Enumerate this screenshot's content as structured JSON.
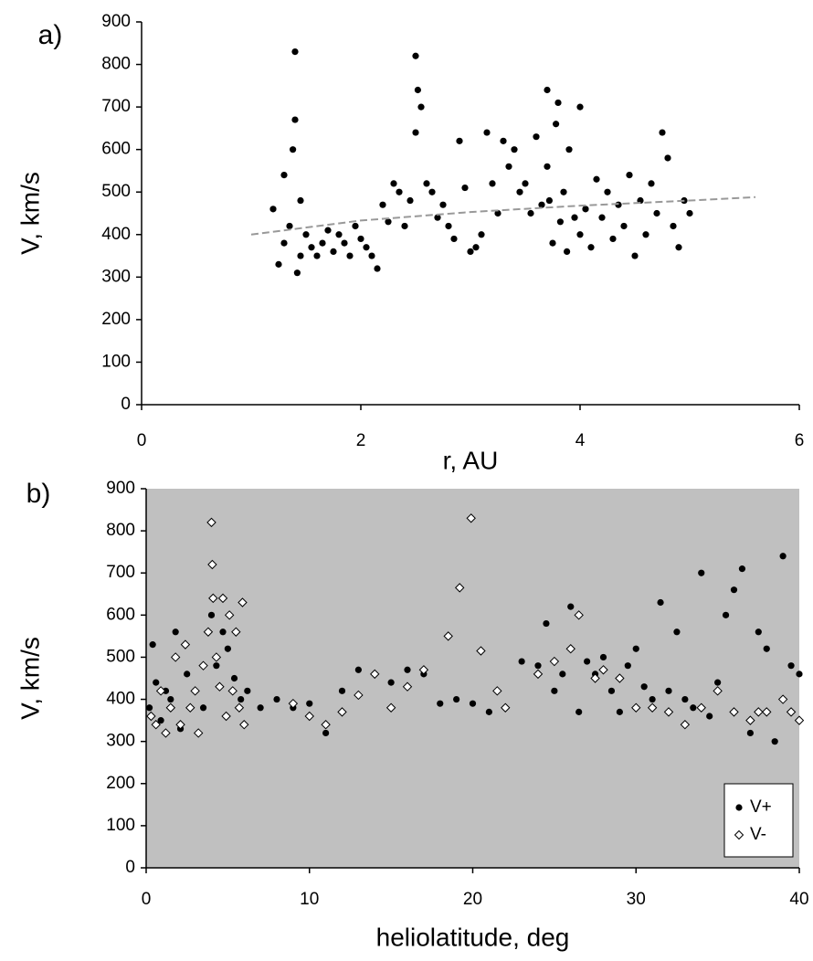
{
  "chart_data": [
    {
      "type": "scatter",
      "panel_label": "a)",
      "x_label": "r,  AU",
      "y_label": "V, km/s",
      "xlim": [
        0,
        6
      ],
      "xticks": [
        0,
        2,
        4,
        6
      ],
      "ylim": [
        0,
        900
      ],
      "yticks": [
        0,
        100,
        200,
        300,
        400,
        500,
        600,
        700,
        800,
        900
      ],
      "background": "#ffffff",
      "series": [
        {
          "color": "#000000",
          "marker": "circle",
          "x": [
            1.2,
            1.25,
            1.3,
            1.3,
            1.35,
            1.38,
            1.4,
            1.4,
            1.42,
            1.45,
            1.45,
            1.5,
            1.55,
            1.6,
            1.65,
            1.7,
            1.75,
            1.8,
            1.85,
            1.9,
            1.95,
            2.0,
            2.05,
            2.1,
            2.15,
            2.2,
            2.25,
            2.3,
            2.35,
            2.4,
            2.45,
            2.5,
            2.5,
            2.52,
            2.55,
            2.6,
            2.65,
            2.7,
            2.75,
            2.8,
            2.85,
            2.9,
            2.95,
            3.0,
            3.05,
            3.1,
            3.15,
            3.2,
            3.25,
            3.3,
            3.35,
            3.4,
            3.45,
            3.5,
            3.55,
            3.6,
            3.65,
            3.7,
            3.7,
            3.72,
            3.75,
            3.78,
            3.8,
            3.82,
            3.85,
            3.88,
            3.9,
            3.95,
            4.0,
            4.0,
            4.05,
            4.1,
            4.15,
            4.2,
            4.25,
            4.3,
            4.35,
            4.4,
            4.45,
            4.5,
            4.55,
            4.6,
            4.65,
            4.7,
            4.75,
            4.8,
            4.85,
            4.9,
            4.95,
            5.0
          ],
          "values": [
            460,
            330,
            540,
            380,
            420,
            600,
            830,
            670,
            310,
            480,
            350,
            400,
            370,
            350,
            380,
            410,
            360,
            400,
            380,
            350,
            420,
            390,
            370,
            350,
            320,
            470,
            430,
            520,
            500,
            420,
            480,
            820,
            640,
            740,
            700,
            520,
            500,
            440,
            470,
            420,
            390,
            620,
            510,
            360,
            370,
            400,
            640,
            520,
            450,
            620,
            560,
            600,
            500,
            520,
            450,
            630,
            470,
            740,
            560,
            480,
            380,
            660,
            710,
            430,
            500,
            360,
            600,
            440,
            700,
            400,
            460,
            370,
            530,
            440,
            500,
            390,
            470,
            420,
            540,
            350,
            480,
            400,
            520,
            450,
            640,
            580,
            420,
            370,
            480,
            450
          ]
        }
      ],
      "trendline": {
        "color": "#999999",
        "x": [
          1,
          2,
          3,
          4,
          5,
          5.6
        ],
        "y": [
          400,
          433,
          453,
          468,
          480,
          488
        ]
      }
    },
    {
      "type": "scatter",
      "panel_label": "b)",
      "x_label": "heliolatitude, deg",
      "y_label": "V, km/s",
      "xlim": [
        0,
        40
      ],
      "xticks": [
        0,
        10,
        20,
        30,
        40
      ],
      "ylim": [
        0,
        900
      ],
      "yticks": [
        0,
        100,
        200,
        300,
        400,
        500,
        600,
        700,
        800,
        900
      ],
      "background": "#c0c0c0",
      "legend": "lower right",
      "series": [
        {
          "name": "V+",
          "color": "#000000",
          "marker": "circle",
          "x": [
            0.2,
            0.4,
            0.6,
            0.9,
            1.2,
            1.5,
            1.8,
            2.1,
            2.5,
            3.0,
            3.5,
            4.0,
            4.3,
            4.7,
            5.0,
            5.4,
            5.8,
            6.2,
            7,
            8,
            9,
            10,
            11,
            12,
            13,
            14,
            15,
            16,
            17,
            18,
            19,
            20,
            21,
            22,
            23,
            24,
            24.5,
            25,
            25.5,
            26,
            26.5,
            27,
            27.5,
            28,
            28.5,
            29,
            29.5,
            30,
            30.5,
            31,
            31.5,
            32,
            32.5,
            33,
            33.5,
            34,
            34.5,
            35,
            35.5,
            36,
            36.5,
            37,
            37.5,
            38,
            38.5,
            39,
            39.5,
            40
          ],
          "values": [
            380,
            530,
            440,
            350,
            420,
            400,
            560,
            330,
            460,
            420,
            380,
            600,
            480,
            560,
            520,
            450,
            400,
            420,
            380,
            400,
            380,
            390,
            320,
            420,
            470,
            460,
            440,
            470,
            460,
            390,
            400,
            390,
            370,
            380,
            490,
            480,
            580,
            420,
            460,
            620,
            370,
            490,
            460,
            500,
            420,
            370,
            480,
            520,
            430,
            400,
            630,
            420,
            560,
            400,
            380,
            700,
            360,
            440,
            600,
            660,
            710,
            320,
            560,
            520,
            300,
            740,
            480,
            460
          ]
        },
        {
          "name": "V-",
          "color": "#ffffff",
          "marker": "diamond",
          "x": [
            0.3,
            0.6,
            0.9,
            1.2,
            1.5,
            1.8,
            2.1,
            2.4,
            2.7,
            3.0,
            3.2,
            3.5,
            3.8,
            4.0,
            4.05,
            4.1,
            4.3,
            4.5,
            4.7,
            4.9,
            5.1,
            5.3,
            5.5,
            5.7,
            5.9,
            6.0,
            9,
            10,
            11,
            12,
            13,
            14,
            15,
            16,
            17,
            18.5,
            19.2,
            19.9,
            20.5,
            21.5,
            22,
            24,
            25,
            26,
            26.5,
            27.5,
            28,
            29,
            30,
            31,
            32,
            33,
            34,
            35,
            36,
            37,
            37.5,
            38,
            39,
            39.5,
            40
          ],
          "values": [
            360,
            340,
            420,
            320,
            380,
            500,
            340,
            530,
            380,
            420,
            320,
            480,
            560,
            820,
            720,
            640,
            500,
            430,
            640,
            360,
            600,
            420,
            560,
            380,
            630,
            340,
            390,
            360,
            340,
            370,
            410,
            460,
            380,
            430,
            470,
            550,
            665,
            830,
            515,
            420,
            380,
            460,
            490,
            520,
            600,
            450,
            470,
            450,
            380,
            380,
            370,
            340,
            380,
            420,
            370,
            350,
            370,
            370,
            400,
            370,
            350
          ]
        }
      ]
    }
  ]
}
